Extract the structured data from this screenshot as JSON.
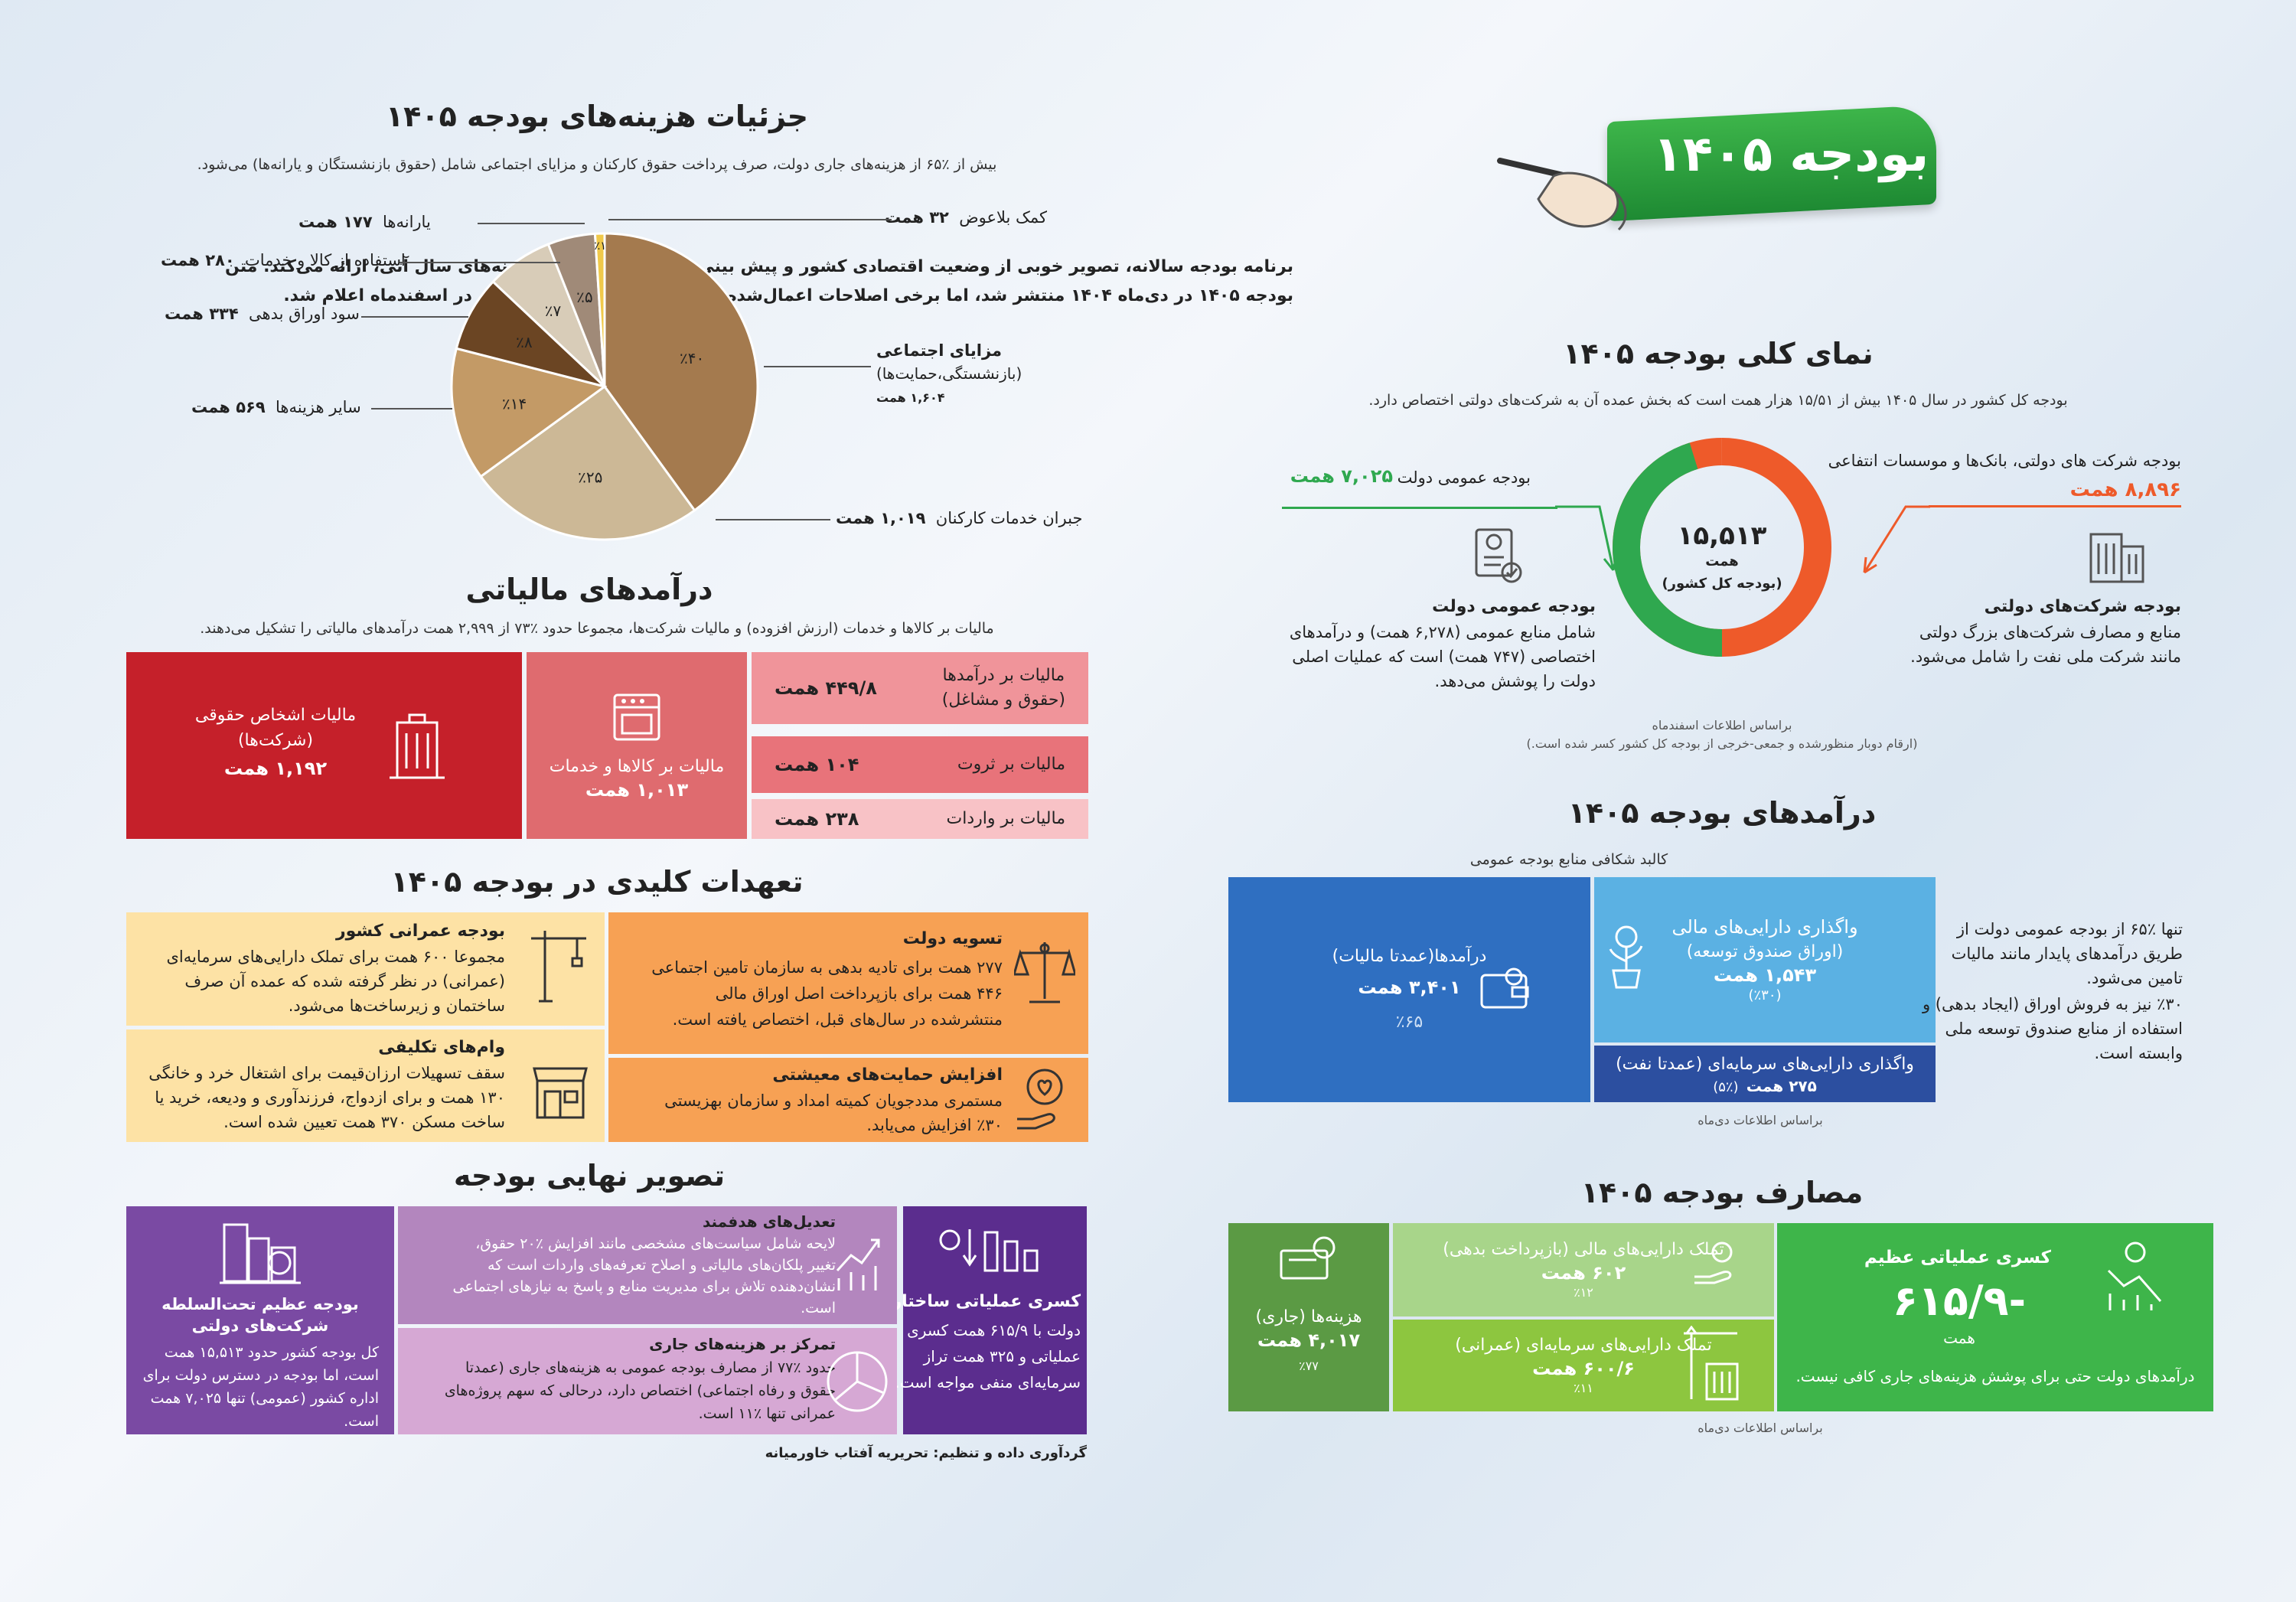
{
  "header": {
    "title": "بودجه ۱۴۰۵",
    "intro_line1": "برنامه بودجه سالانه، تصویر خوبی از وضعیت اقتصادی کشور و پیش بینی دولت از درآمدها و هزینه‌های سال آتی، ارائه می‌کند. متن",
    "intro_line2": "بودجه ۱۴۰۵ در دی‌ماه ۱۴۰۴ منتشر شد، اما برخی اصلاحات اعمال‌شده توسط مجلس شورای اسلامی در اسفندماه اعلام شد."
  },
  "overview": {
    "title": "نمای کلی بودجه ۱۴۰۵",
    "subtitle": "بودجه کل کشور در سال ۱۴۰۵ بیش از ۱۵/۵۱ هزار همت است که بخش عمده آن به شرکت‌های دولتی اختصاص دارد.",
    "center_value": "۱۵,۵۱۳",
    "center_unit": "همت",
    "center_label": "(بودجه کل کشور)",
    "public_label": "بودجه عمومی دولت",
    "public_value": "۷,۰۲۵ همت",
    "soe_label": "بودجه شرکت های دولتی، بانک‌ها و موسسات انتفاعی",
    "soe_value": "۸,۸۹۶ همت",
    "public_desc_title": "بودجه عمومی دولت",
    "public_desc_1": "شامل منابع عمومی (۶,۲۷۸ همت) و درآمدهای",
    "public_desc_2": "اختصاصی (۷۴۷ همت) است که عملیات اصلی",
    "public_desc_3": "دولت را پوشش می‌دهد.",
    "soe_desc_title": "بودجه شرکت‌های دولتی",
    "soe_desc_1": "منابع و مصارف شرکت‌های بزرگ دولتی",
    "soe_desc_2": "مانند شرکت ملی نفت را شامل می‌شود.",
    "source_1": "براساس اطلاعات اسفندماه",
    "source_2": "(ارقام دوبار منظورشده و جمعی-خرجی از بودجه کل کشور کسر شده است.)",
    "colors": {
      "soe": "#ee5a2a",
      "public": "#2fa84f"
    }
  },
  "revenues": {
    "title": "درآمدهای بودجه ۱۴۰۵",
    "subtitle": "کالبد شکافی منابع بودجه عمومی",
    "tax_label": "درآمدها(عمدتا مالیات)",
    "tax_value": "۳,۴۰۱ همت",
    "tax_pct": "٪۶۵",
    "fin_label": "واگذاری دارایی‌های مالی",
    "fin_sub": "(اوراق صندوق توسعه)",
    "fin_value": "۱,۵۴۳ همت",
    "fin_pct": "(٪۳۰)",
    "cap_label": "واگذاری دارایی‌های سرمایه‌ای (عمدتا نفت)",
    "cap_value": "۲۷۵ همت",
    "cap_pct": "(٪۵)",
    "note_1": "تنها ٪۶۵ از بودجه عمومی دولت از",
    "note_2": "طریق درآمدهای پایدار مانند مالیات",
    "note_3": "تامین می‌شود.",
    "note_4": "٪۳۰ نیز به فروش اوراق (ایجاد بدهی) و",
    "note_5": "استفاده از منابع صندوق توسعه ملی",
    "note_6": "وابسته است.",
    "source": "براساس اطلاعات دی‌ماه"
  },
  "expenses": {
    "title": "مصارف بودجه ۱۴۰۵",
    "deficit_title": "کسری عملیاتی عظیم",
    "deficit_value": "-۶۱۵/۹",
    "deficit_unit": "همت",
    "deficit_desc": "درآمدهای دولت حتی برای پوشش هزینه‌های جاری کافی نیست.",
    "fin_label": "تملک دارایی‌های مالی (بازپرداخت بدهی)",
    "fin_value": "۶۰۲ همت",
    "fin_pct": "٪۱۲",
    "cap_label": "تملک دارایی‌های سرمایه‌ای (عمرانی)",
    "cap_value": "۶۰۰/۶ همت",
    "cap_pct": "٪۱۱",
    "cur_label": "هزینه‌ها (جاری)",
    "cur_value": "۴,۰۱۷ همت",
    "cur_pct": "٪۷۷",
    "source": "براساس اطلاعات دی‌ماه"
  },
  "cost_details": {
    "title": "جزئیات هزینه‌های بودجه ۱۴۰۵",
    "subtitle": "بیش از ٪۶۵ از هزینه‌های جاری دولت، صرف پرداخت حقوق کارکنان و مزایای اجتماعی شامل (حقوق بازنشستگان و یارانه‌ها) می‌شود.",
    "slices": [
      {
        "pct": "٪۴۰",
        "value": 40,
        "color": "#a47a4e",
        "label": "مزایای اجتماعی",
        "label2": "(بازنشستگی،حمایت‌ها)",
        "amount": "۱,۶۰۴ همت"
      },
      {
        "pct": "٪۲۵",
        "value": 25,
        "color": "#ccb896",
        "label": "جبران خدمات کارکنان",
        "amount": "۱,۰۱۹ همت"
      },
      {
        "pct": "٪۱۴",
        "value": 14,
        "color": "#c39a66",
        "label": "سایر هزینه‌ها",
        "amount": "۵۶۹ همت"
      },
      {
        "pct": "٪۸",
        "value": 8,
        "color": "#6b4523",
        "label": "سود اوراق بدهی",
        "amount": "۳۳۴ همت"
      },
      {
        "pct": "٪۷",
        "value": 7,
        "color": "#d8ccb8",
        "label": "استفاده از کالا و خدمات",
        "amount": "۲۸۰ همت"
      },
      {
        "pct": "٪۵",
        "value": 5,
        "color": "#a08a78",
        "label": "یارانه‌ها",
        "amount": "۱۷۷ همت"
      },
      {
        "pct": "٪۱",
        "value": 1,
        "color": "#f0c94a",
        "label": "کمک بلاعوض",
        "amount": "۳۲ همت"
      }
    ]
  },
  "tax": {
    "title": "درآمدهای مالیاتی",
    "subtitle": "مالیات بر کالاها و خدمات (ارزش افزوده) و مالیات شرکت‌ها، مجموعا حدود ٪۷۳ از ۲,۹۹۹ همت درآمدهای مالیاتی را تشکیل می‌دهند.",
    "corp_label_1": "مالیات اشخاص حقوقی",
    "corp_label_2": "(شرکت‌ها)",
    "corp_value": "۱,۱۹۲ همت",
    "goods_label": "مالیات بر کالاها و خدمات",
    "goods_value": "۱,۰۱۳ همت",
    "income_label_1": "مالیات بر درآمدها",
    "income_label_2": "(حقوق و مشاغل)",
    "income_value": "۴۴۹/۸ همت",
    "wealth_label": "مالیات بر ثروت",
    "wealth_value": "۱۰۴ همت",
    "import_label": "مالیات بر واردات",
    "import_value": "۲۳۸ همت"
  },
  "commitments": {
    "title": "تعهدات کلیدی در بودجه ۱۴۰۵",
    "settle_title": "تسویه دولت",
    "settle_1": "۲۷۷ همت برای تادیه بدهی به سازمان تامین اجتماعی",
    "settle_2": "۴۴۶ همت برای بازپرداخت اصل اوراق مالی",
    "settle_3": "منتشرشده در سال‌های قبل، اختصاص یافته است.",
    "civil_title": "بودجه عمرانی کشور",
    "civil_1": "مجموعا ۶۰۰ همت برای تملک دارایی‌های سرمایه‌ای",
    "civil_2": "(عمرانی) در نظر گرفته شده که عمده آن صرف",
    "civil_3": "ساختمان و زیرساخت‌ها می‌شود.",
    "welfare_title": "افزایش حمایت‌های معیشتی",
    "welfare_1": "مستمری مددجویان کمیته امداد و سازمان بهزیستی",
    "welfare_2": "٪۳۰ افزایش می‌یابد.",
    "loan_title": "وام‌های تکلیفی",
    "loan_1": "سقف تسهیلات ارزان‌قیمت برای اشتغال خرد و خانگی",
    "loan_2": "۱۳۰ همت و برای ازدواج، فرزندآوری و ودیعه، خرید یا",
    "loan_3": "ساخت مسکن ۳۷۰ همت تعیین شده است."
  },
  "final": {
    "title": "تصویر نهایی بودجه",
    "deficit_title": "کسری عملیاتی ساختاری",
    "deficit_1": "دولت با ۶۱۵/۹ همت کسری",
    "deficit_2": "عملیاتی و ۳۲۵ همت تراز",
    "deficit_3": "سرمایه‌ای منفی مواجه است.",
    "adj_title": "تعدیل‌های هدفمند",
    "adj_1": "لایحه شامل سیاست‌های مشخصی مانند افزایش ٪۲۰ حقوق،",
    "adj_2": "تغییر پلکان‌های مالیاتی و اصلاح تعرفه‌های واردات است که",
    "adj_3": "نشان‌دهنده تلاش برای مدیریت منابع و پاسخ به نیازهای اجتماعی",
    "adj_4": "است.",
    "focus_title": "تمرکز بر هزینه‌های جاری",
    "focus_1": "حدود ٪۷۷ از مصارف بودجه عمومی به هزینه‌های جاری (عمدتا",
    "focus_2": "حقوق و رفاه اجتماعی) اختصاص دارد، درحالی که سهم پروژه‌های",
    "focus_3": "عمرانی تنها ٪۱۱ است.",
    "giant_title_1": "بودجه عظیم تحت‌السلطه",
    "giant_title_2": "شرکت‌های دولتی",
    "giant_1": "کل بودجه کشور حدود ۱۵,۵۱۳ همت",
    "giant_2": "است، اما بودجه در دسترس دولت برای",
    "giant_3": "اداره کشور (عمومی) تنها ۷,۰۲۵ همت",
    "giant_4": "است.",
    "credit": "گردآوری داده و تنظیم: تحریریه آفتاب خاورمیانه"
  }
}
